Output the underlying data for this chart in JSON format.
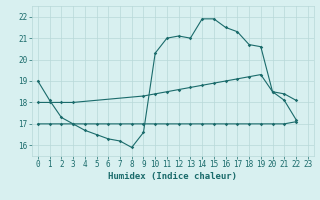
{
  "line1_x": [
    0,
    1,
    2,
    3,
    4,
    5,
    6,
    7,
    8,
    9,
    10,
    11,
    12,
    13,
    14,
    15,
    16,
    17,
    18,
    19,
    20,
    21,
    22
  ],
  "line1_y": [
    19.0,
    18.1,
    17.3,
    17.0,
    16.7,
    16.5,
    16.3,
    16.2,
    15.9,
    16.6,
    20.3,
    21.0,
    21.1,
    21.0,
    21.9,
    21.9,
    21.5,
    21.3,
    20.7,
    20.6,
    18.5,
    18.1,
    17.2
  ],
  "line2_x": [
    0,
    1,
    2,
    3,
    9,
    10,
    11,
    12,
    13,
    14,
    15,
    16,
    17,
    18,
    19,
    20,
    21,
    22
  ],
  "line2_y": [
    18.0,
    18.0,
    18.0,
    18.0,
    18.3,
    18.4,
    18.5,
    18.6,
    18.7,
    18.8,
    18.9,
    19.0,
    19.1,
    19.2,
    19.3,
    18.5,
    18.4,
    18.1
  ],
  "line3_x": [
    0,
    1,
    2,
    3,
    4,
    5,
    6,
    7,
    8,
    9,
    10,
    11,
    12,
    13,
    14,
    15,
    16,
    17,
    18,
    19,
    20,
    21,
    22
  ],
  "line3_y": [
    17.0,
    17.0,
    17.0,
    17.0,
    17.0,
    17.0,
    17.0,
    17.0,
    17.0,
    17.0,
    17.0,
    17.0,
    17.0,
    17.0,
    17.0,
    17.0,
    17.0,
    17.0,
    17.0,
    17.0,
    17.0,
    17.0,
    17.1
  ],
  "line_color": "#1a6b6b",
  "marker": "D",
  "marker_size": 1.8,
  "lw": 0.8,
  "bg_color": "#d8f0f0",
  "grid_color": "#b8d8d8",
  "xlabel": "Humidex (Indice chaleur)",
  "xlim": [
    -0.5,
    23.5
  ],
  "ylim": [
    15.5,
    22.5
  ],
  "yticks": [
    16,
    17,
    18,
    19,
    20,
    21,
    22
  ],
  "xticks": [
    0,
    1,
    2,
    3,
    4,
    5,
    6,
    7,
    8,
    9,
    10,
    11,
    12,
    13,
    14,
    15,
    16,
    17,
    18,
    19,
    20,
    21,
    22,
    23
  ],
  "tick_fontsize": 5.5,
  "xlabel_fontsize": 6.5
}
